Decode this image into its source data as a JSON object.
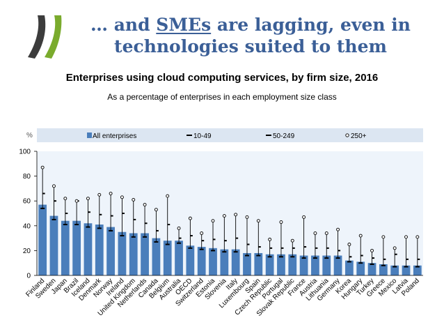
{
  "header": {
    "title_prefix": "… and ",
    "title_highlight": "SMEs",
    "title_line1_suffix": " are lagging, even in",
    "title_line2": "technologies suited to them"
  },
  "chart_data": {
    "type": "bar",
    "title": "Enterprises using cloud computing services, by firm size, 2016",
    "subtitle": "As a percentage of enterprises in each employment size class",
    "ylabel": "%",
    "ylim": [
      0,
      100
    ],
    "yticks": [
      0,
      20,
      40,
      60,
      80,
      100
    ],
    "grid": false,
    "legend_position": "top",
    "categories": [
      "Finland",
      "Sweden",
      "Japan",
      "Brazil",
      "Iceland",
      "Denmark",
      "Norway",
      "Ireland",
      "United Kingdom",
      "Netherlands",
      "Canada",
      "Belgium",
      "Australia",
      "OECD",
      "Switzerland",
      "Estonia",
      "Slovenia",
      "Italy",
      "Luxembourg",
      "Spain",
      "Czech Republic",
      "Portugal",
      "Slovak Republic",
      "France",
      "Austria",
      "Lithuania",
      "Germany",
      "Korea",
      "Hungary",
      "Turkey",
      "Greece",
      "Mexico",
      "Latvia",
      "Poland"
    ],
    "series": [
      {
        "name": "All enterprises",
        "type": "bar",
        "color": "#4a7ebb",
        "values": [
          57,
          48,
          44,
          44,
          42,
          41,
          39,
          35,
          34,
          34,
          30,
          28,
          28,
          24,
          23,
          22,
          21,
          21,
          18,
          18,
          17,
          17,
          17,
          16,
          16,
          16,
          16,
          12,
          11,
          10,
          9,
          8,
          8,
          8
        ]
      },
      {
        "name": "10-49",
        "type": "dash",
        "values": [
          54,
          45,
          41,
          41,
          39,
          38,
          36,
          32,
          31,
          31,
          27,
          25,
          26,
          22,
          21,
          20,
          19,
          19,
          16,
          16,
          15,
          15,
          15,
          14,
          14,
          14,
          14,
          11,
          10,
          9,
          8,
          7,
          7,
          7
        ]
      },
      {
        "name": "50-249",
        "type": "dash",
        "values": [
          66,
          60,
          50,
          60,
          51,
          49,
          48,
          50,
          45,
          42,
          36,
          41,
          30,
          32,
          28,
          29,
          28,
          30,
          25,
          23,
          22,
          22,
          22,
          23,
          22,
          22,
          20,
          15,
          16,
          14,
          13,
          17,
          13,
          13
        ]
      },
      {
        "name": "250+",
        "type": "circle",
        "values": [
          87,
          72,
          62,
          60,
          62,
          65,
          66,
          63,
          61,
          57,
          53,
          64,
          38,
          46,
          34,
          44,
          48,
          49,
          47,
          44,
          29,
          43,
          28,
          47,
          34,
          34,
          37,
          25,
          32,
          20,
          31,
          22,
          31,
          31
        ]
      }
    ]
  }
}
